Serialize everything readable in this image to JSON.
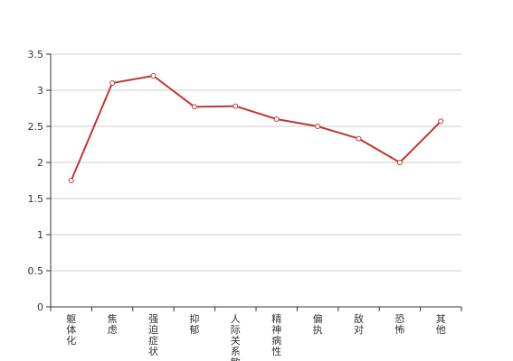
{
  "chart_data": {
    "type": "line",
    "title": "",
    "xlabel": "",
    "ylabel": "",
    "categories": [
      "躯体化",
      "焦虑",
      "强迫症状",
      "抑郁",
      "人际关系敏感",
      "精神病性",
      "偏执",
      "敌对",
      "恐怖",
      "其他"
    ],
    "series": [
      {
        "name": "",
        "values": [
          1.75,
          3.1,
          3.2,
          2.77,
          2.78,
          2.6,
          2.5,
          2.33,
          2.0,
          2.57
        ]
      }
    ],
    "ylim": [
      0,
      3.5
    ],
    "yticks": [
      "0",
      "0.5",
      "1",
      "1.5",
      "2",
      "2.5",
      "3",
      "3.5"
    ],
    "grid": true,
    "colors": {
      "line": "#c23531",
      "grid": "#cccccc",
      "axis": "#333333"
    }
  }
}
